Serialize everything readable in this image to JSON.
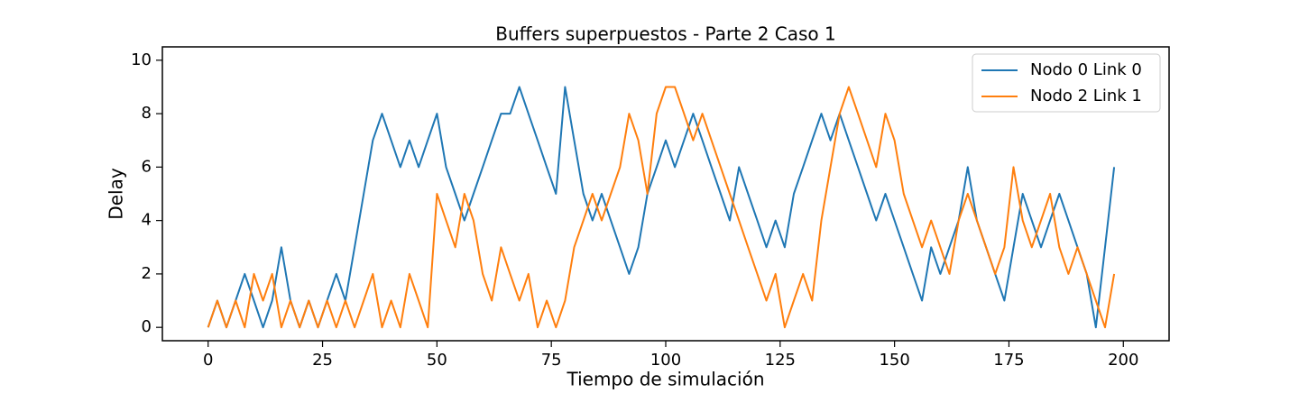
{
  "chart_data": {
    "type": "line",
    "title": "Buffers superpuestos - Parte 2 Caso 1",
    "xlabel": "Tiempo de simulación",
    "ylabel": "Delay",
    "x": [
      0,
      2,
      4,
      6,
      8,
      10,
      12,
      14,
      16,
      18,
      20,
      22,
      24,
      26,
      28,
      30,
      32,
      34,
      36,
      38,
      40,
      42,
      44,
      46,
      48,
      50,
      52,
      54,
      56,
      58,
      60,
      62,
      64,
      66,
      68,
      70,
      72,
      74,
      76,
      78,
      80,
      82,
      84,
      86,
      88,
      90,
      92,
      94,
      96,
      98,
      100,
      102,
      104,
      106,
      108,
      110,
      112,
      114,
      116,
      118,
      120,
      122,
      124,
      126,
      128,
      130,
      132,
      134,
      136,
      138,
      140,
      142,
      144,
      146,
      148,
      150,
      152,
      154,
      156,
      158,
      160,
      162,
      164,
      166,
      168,
      170,
      172,
      174,
      176,
      178,
      180,
      182,
      184,
      186,
      188,
      190,
      192,
      194,
      196,
      198
    ],
    "series": [
      {
        "name": "Nodo 0 Link 0",
        "color": "#1f77b4",
        "values": [
          0,
          1,
          0,
          1,
          2,
          1,
          0,
          1,
          3,
          1,
          0,
          1,
          0,
          1,
          2,
          1,
          3,
          5,
          7,
          8,
          7,
          6,
          7,
          6,
          7,
          8,
          6,
          5,
          4,
          5,
          6,
          7,
          8,
          8,
          9,
          8,
          7,
          6,
          5,
          9,
          7,
          5,
          4,
          5,
          4,
          3,
          2,
          3,
          5,
          6,
          7,
          6,
          7,
          8,
          7,
          6,
          5,
          4,
          6,
          5,
          4,
          3,
          4,
          3,
          5,
          6,
          7,
          8,
          7,
          8,
          7,
          6,
          5,
          4,
          5,
          4,
          3,
          2,
          1,
          3,
          2,
          3,
          4,
          6,
          4,
          3,
          2,
          1,
          3,
          5,
          4,
          3,
          4,
          5,
          4,
          3,
          2,
          0,
          3,
          6
        ]
      },
      {
        "name": "Nodo 2 Link 1",
        "color": "#ff7f0e",
        "values": [
          0,
          1,
          0,
          1,
          0,
          2,
          1,
          2,
          0,
          1,
          0,
          1,
          0,
          1,
          0,
          1,
          0,
          1,
          2,
          0,
          1,
          0,
          2,
          1,
          0,
          5,
          4,
          3,
          5,
          4,
          2,
          1,
          3,
          2,
          1,
          2,
          0,
          1,
          0,
          1,
          3,
          4,
          5,
          4,
          5,
          6,
          8,
          7,
          5,
          8,
          9,
          9,
          8,
          7,
          8,
          7,
          6,
          5,
          4,
          3,
          2,
          1,
          2,
          0,
          1,
          2,
          1,
          4,
          6,
          8,
          9,
          8,
          7,
          6,
          8,
          7,
          5,
          4,
          3,
          4,
          3,
          2,
          4,
          5,
          4,
          3,
          2,
          3,
          6,
          4,
          3,
          4,
          5,
          3,
          2,
          3,
          2,
          1,
          0,
          2
        ]
      }
    ],
    "xlim": [
      -10,
      210
    ],
    "ylim": [
      -0.5,
      10.5
    ],
    "xticks": [
      0,
      25,
      50,
      75,
      100,
      125,
      150,
      175,
      200
    ],
    "yticks": [
      0,
      2,
      4,
      6,
      8,
      10
    ],
    "legend": "upper right"
  }
}
